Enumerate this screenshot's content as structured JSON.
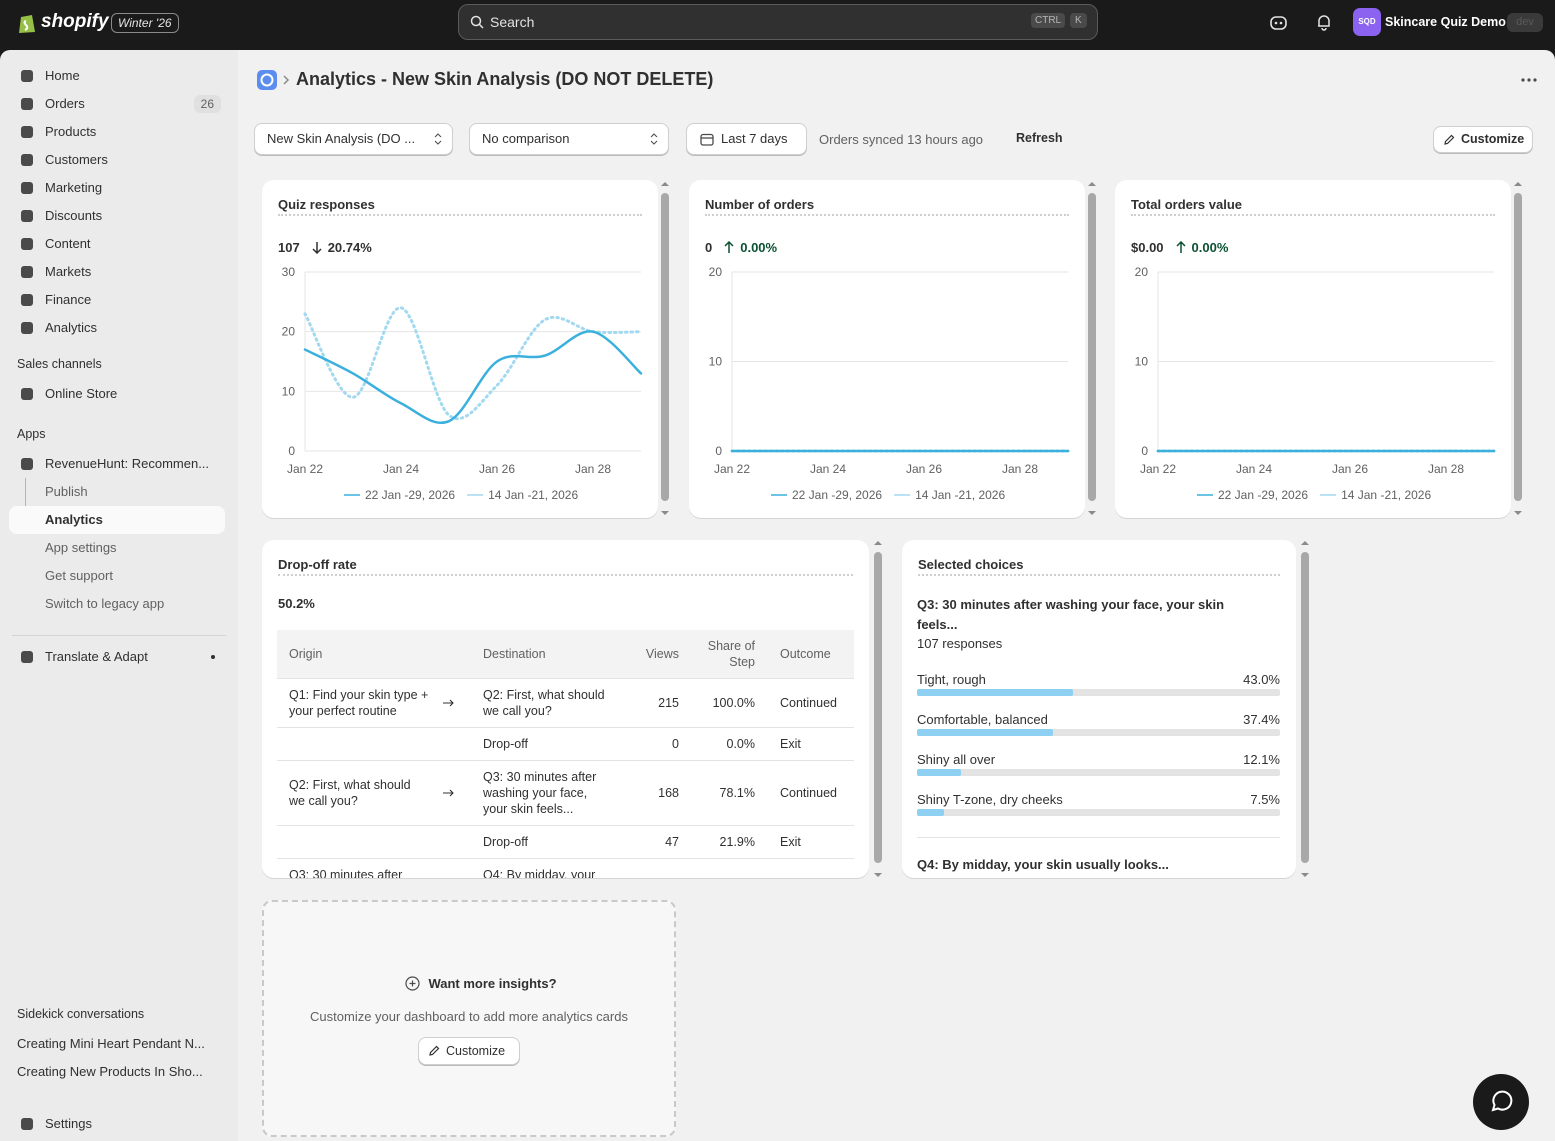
{
  "topbar": {
    "brand": "shopify",
    "badge": "Winter '26",
    "search": "Search",
    "shortcut": [
      "CTRL",
      "K"
    ],
    "avatar": "SQD",
    "store": "Skincare Quiz Demo",
    "store_tag": "dev"
  },
  "sidebar": {
    "nav": [
      {
        "label": "Home"
      },
      {
        "label": "Orders",
        "badge": 26
      },
      {
        "label": "Products"
      },
      {
        "label": "Customers"
      },
      {
        "label": "Marketing"
      },
      {
        "label": "Discounts"
      },
      {
        "label": "Content"
      },
      {
        "label": "Markets"
      },
      {
        "label": "Finance"
      },
      {
        "label": "Analytics"
      }
    ],
    "sales_channels": {
      "heading": "Sales channels",
      "items": [
        "Online Store"
      ]
    },
    "apps": {
      "heading": "Apps",
      "app": "RevenueHunt: Recommen...",
      "subitems": [
        "Publish",
        "Analytics",
        "App settings",
        "Get support",
        "Switch to legacy app"
      ],
      "selected_subitem": 1,
      "other": [
        "Translate & Adapt"
      ]
    },
    "sidekick": {
      "heading": "Sidekick conversations",
      "items": [
        "Creating Mini Heart Pendant N...",
        "Creating New Products In Sho..."
      ]
    },
    "settings": "Settings"
  },
  "header": {
    "title": "Analytics - New Skin Analysis (DO NOT DELETE)",
    "filters": [
      "New Skin Analysis (DO ...",
      "No comparison"
    ],
    "date_range": "Last 7 days",
    "synced": "Orders synced 13 hours ago",
    "refresh": "Refresh",
    "customize": "Customize"
  },
  "chart_data": [
    {
      "type": "line",
      "title": "Quiz responses",
      "summary": "107",
      "change": "20.74%",
      "trend": "down",
      "categories": [
        "Jan 22",
        null,
        "Jan 24",
        null,
        "Jan 26",
        null,
        "Jan 28",
        null
      ],
      "series": [
        {
          "name": "22 Jan -29, 2026",
          "color": "#3bb0dc",
          "values": [
            17,
            13,
            8,
            5,
            15,
            16,
            20,
            13
          ]
        },
        {
          "name": "14 Jan -21, 2026",
          "color": "#a3d9f0",
          "dashed": true,
          "values": [
            23,
            9,
            24,
            6,
            11,
            22,
            20,
            20
          ]
        }
      ],
      "ylim": [
        0,
        30
      ],
      "yticks": [
        0,
        10,
        20,
        30
      ],
      "grid": true
    },
    {
      "type": "line",
      "title": "Number of orders",
      "summary": "0",
      "change": "0.00%",
      "trend": "up",
      "categories": [
        "Jan 22",
        null,
        "Jan 24",
        null,
        "Jan 26",
        null,
        "Jan 28",
        null
      ],
      "series": [
        {
          "name": "22 Jan -29, 2026",
          "color": "#3bb0dc",
          "values": [
            0,
            0,
            0,
            0,
            0,
            0,
            0,
            0
          ]
        },
        {
          "name": "14 Jan -21, 2026",
          "color": "#a3d9f0",
          "dashed": true,
          "values": [
            0,
            0,
            0,
            0,
            0,
            0,
            0,
            0
          ]
        }
      ],
      "ylim": [
        0,
        20
      ],
      "yticks": [
        0,
        10,
        20
      ],
      "grid": true
    },
    {
      "type": "line",
      "title": "Total orders value",
      "summary": "$0.00",
      "change": "0.00%",
      "trend": "up",
      "categories": [
        "Jan 22",
        null,
        "Jan 24",
        null,
        "Jan 26",
        null,
        "Jan 28",
        null
      ],
      "series": [
        {
          "name": "22 Jan -29, 2026",
          "color": "#3bb0dc",
          "values": [
            0,
            0,
            0,
            0,
            0,
            0,
            0,
            0
          ]
        },
        {
          "name": "14 Jan -21, 2026",
          "color": "#a3d9f0",
          "dashed": true,
          "values": [
            0,
            0,
            0,
            0,
            0,
            0,
            0,
            0
          ]
        }
      ],
      "ylim": [
        0,
        20
      ],
      "yticks": [
        0,
        10,
        20
      ],
      "grid": true
    }
  ],
  "dropoff": {
    "title": "Drop-off rate",
    "value": "50.2%",
    "columns": [
      "Origin",
      "Destination",
      "Views",
      "Share of Step",
      "Outcome"
    ],
    "rows": [
      [
        "Q1: Find your skin type + your perfect routine",
        "Q2: First, what should we call you?",
        215,
        "100.0%",
        "Continued"
      ],
      [
        null,
        "Drop-off",
        0,
        "0.0%",
        "Exit"
      ],
      [
        "Q2: First, what should we call you?",
        "Q3: 30 minutes after washing your face, your skin feels...",
        168,
        "78.1%",
        "Continued"
      ],
      [
        null,
        "Drop-off",
        47,
        "21.9%",
        "Exit"
      ],
      [
        "Q3: 30 minutes after",
        "Q4: By midday, your"
      ]
    ]
  },
  "choices": {
    "title": "Selected choices",
    "question": "Q3: 30 minutes after washing your face, your skin feels...",
    "responses": "107 responses",
    "categories": [
      "Tight, rough",
      "Comfortable, balanced",
      "Shiny all over",
      "Shiny T-zone, dry cheeks"
    ],
    "values": [
      43.0,
      37.4,
      12.1,
      7.5
    ],
    "value_labels": [
      "43.0%",
      "37.4%",
      "12.1%",
      "7.5%"
    ],
    "color": "#8dd0f2",
    "next_question": "Q4: By midday, your skin usually looks..."
  },
  "insights": {
    "title": "Want more insights?",
    "text": "Customize your dashboard to add more analytics cards",
    "button": "Customize"
  }
}
